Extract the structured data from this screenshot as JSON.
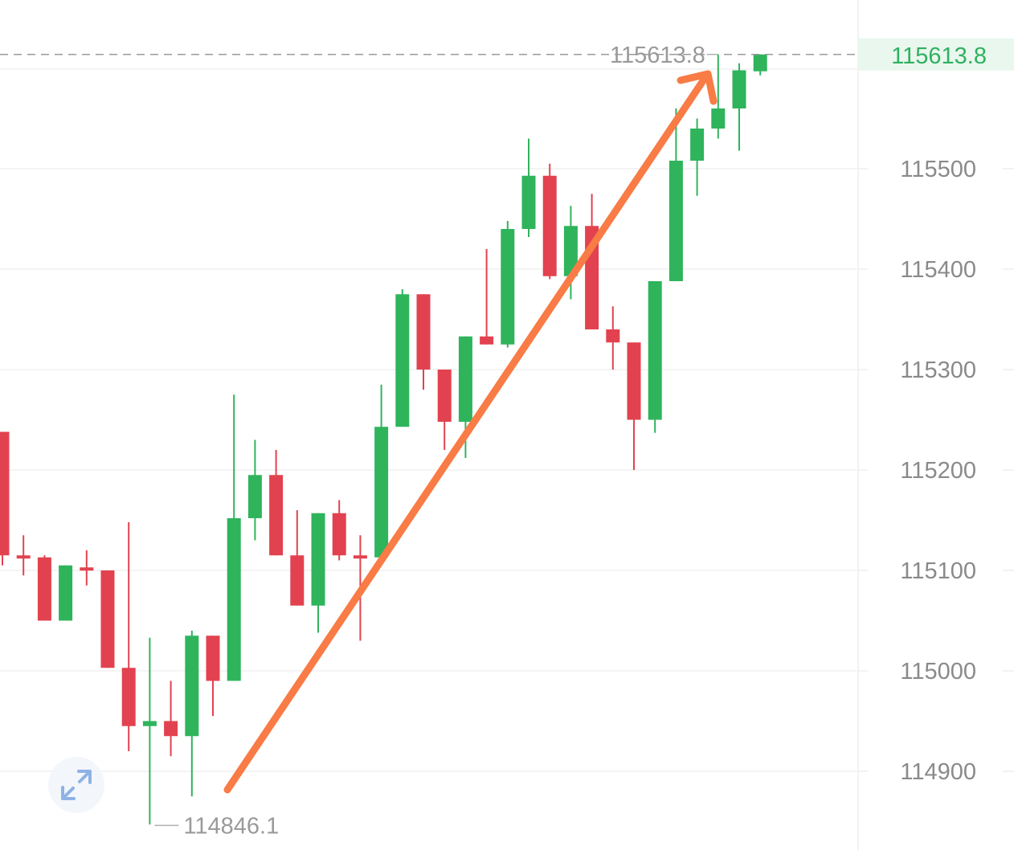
{
  "chart_data": {
    "type": "candlestick",
    "title": "",
    "xlabel": "",
    "ylabel": "",
    "ylim": [
      114830,
      115720
    ],
    "y_ticks": [
      115500,
      115400,
      115300,
      115200,
      115100,
      115000,
      114900
    ],
    "y_tick_labels": [
      "115500",
      "115400",
      "115300",
      "115200",
      "115100",
      "115000",
      "114900"
    ],
    "grid": true,
    "colors": {
      "up": "#2fb45c",
      "down": "#e2424f",
      "arrow": "#f97b45",
      "last_price": "#2fb160"
    },
    "last_price": 115613.8,
    "last_price_label": "115613.8",
    "max_label": "115613.8",
    "min_price": 114846.1,
    "min_label": "114846.1",
    "candles": [
      {
        "open": 115238,
        "high": 115238,
        "low": 115105,
        "close": 115115
      },
      {
        "open": 115115,
        "high": 115135,
        "low": 115095,
        "close": 115113
      },
      {
        "open": 115113,
        "high": 115115,
        "low": 115050,
        "close": 115050
      },
      {
        "open": 115050,
        "high": 115105,
        "low": 115050,
        "close": 115105
      },
      {
        "open": 115103,
        "high": 115120,
        "low": 115085,
        "close": 115100
      },
      {
        "open": 115100,
        "high": 115100,
        "low": 115003,
        "close": 115003
      },
      {
        "open": 115003,
        "high": 115148,
        "low": 114920,
        "close": 114945
      },
      {
        "open": 114945,
        "high": 115033,
        "low": 114847,
        "close": 114950
      },
      {
        "open": 114950,
        "high": 114990,
        "low": 114915,
        "close": 114935
      },
      {
        "open": 114935,
        "high": 115040,
        "low": 114875,
        "close": 115035
      },
      {
        "open": 115035,
        "high": 115035,
        "low": 114955,
        "close": 114990
      },
      {
        "open": 114990,
        "high": 115275,
        "low": 114990,
        "close": 115152
      },
      {
        "open": 115152,
        "high": 115230,
        "low": 115130,
        "close": 115195
      },
      {
        "open": 115195,
        "high": 115220,
        "low": 115115,
        "close": 115115
      },
      {
        "open": 115115,
        "high": 115160,
        "low": 115065,
        "close": 115065
      },
      {
        "open": 115065,
        "high": 115157,
        "low": 115038,
        "close": 115157
      },
      {
        "open": 115157,
        "high": 115170,
        "low": 115110,
        "close": 115115
      },
      {
        "open": 115115,
        "high": 115135,
        "low": 115030,
        "close": 115113
      },
      {
        "open": 115113,
        "high": 115285,
        "low": 115113,
        "close": 115243
      },
      {
        "open": 115243,
        "high": 115380,
        "low": 115243,
        "close": 115375
      },
      {
        "open": 115375,
        "high": 115375,
        "low": 115280,
        "close": 115300
      },
      {
        "open": 115300,
        "high": 115300,
        "low": 115220,
        "close": 115248
      },
      {
        "open": 115248,
        "high": 115333,
        "low": 115212,
        "close": 115333
      },
      {
        "open": 115333,
        "high": 115420,
        "low": 115325,
        "close": 115325
      },
      {
        "open": 115325,
        "high": 115448,
        "low": 115322,
        "close": 115440
      },
      {
        "open": 115440,
        "high": 115530,
        "low": 115432,
        "close": 115493
      },
      {
        "open": 115493,
        "high": 115505,
        "low": 115390,
        "close": 115393
      },
      {
        "open": 115393,
        "high": 115463,
        "low": 115370,
        "close": 115443
      },
      {
        "open": 115443,
        "high": 115475,
        "low": 115340,
        "close": 115340
      },
      {
        "open": 115340,
        "high": 115363,
        "low": 115300,
        "close": 115327
      },
      {
        "open": 115327,
        "high": 115327,
        "low": 115200,
        "close": 115250
      },
      {
        "open": 115250,
        "high": 115388,
        "low": 115237,
        "close": 115388
      },
      {
        "open": 115388,
        "high": 115560,
        "low": 115388,
        "close": 115508
      },
      {
        "open": 115508,
        "high": 115550,
        "low": 115473,
        "close": 115540
      },
      {
        "open": 115540,
        "high": 115613.8,
        "low": 115530,
        "close": 115560
      },
      {
        "open": 115560,
        "high": 115605,
        "low": 115518,
        "close": 115598
      },
      {
        "open": 115597,
        "high": 115613.8,
        "low": 115593,
        "close": 115613.8
      }
    ]
  },
  "ui": {
    "expand_icon": "expand-arrows-icon"
  }
}
